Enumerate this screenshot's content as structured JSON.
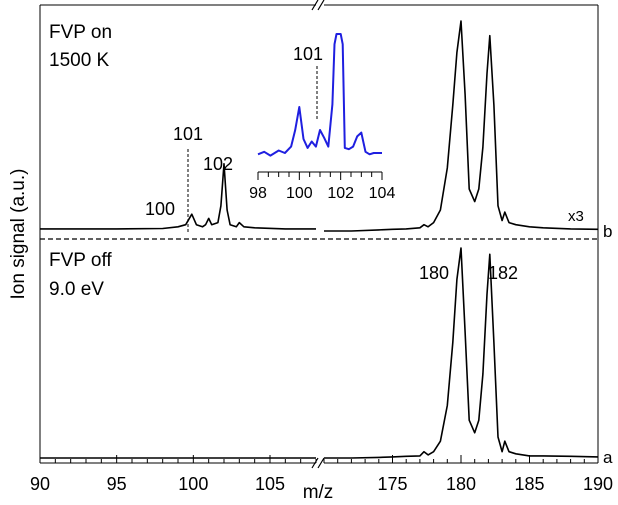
{
  "chart_data": [
    {
      "type": "line",
      "ylabel": "Ion signal (a.u.)",
      "xlabel": "m/z",
      "x_tick_labels": [
        "90",
        "95",
        "100",
        "105",
        "175",
        "180",
        "185",
        "190"
      ],
      "x_segments": [
        {
          "xlim": [
            90,
            108
          ],
          "major_ticks": [
            90,
            95,
            100,
            105
          ]
        },
        {
          "xlim": [
            170,
            190
          ],
          "major_ticks": [
            175,
            180,
            185,
            190
          ]
        }
      ],
      "axis_break": "//",
      "panels": {
        "top": {
          "label_lines": [
            "FVP on",
            "1500 K"
          ],
          "trace_letter": "b",
          "scale_note": "x3",
          "peak_labels": [
            "100",
            "101",
            "102"
          ],
          "dashed_marker_label": "101",
          "series": [
            {
              "segment": 0,
              "x": [
                90,
                95,
                98,
                99,
                99.5,
                99.9,
                100.2,
                100.6,
                100.8,
                101,
                101.2,
                101.6,
                101.8,
                102.0,
                102.2,
                102.4,
                102.8,
                103.0,
                103.3,
                104,
                106,
                108
              ],
              "y": [
                0.01,
                0.01,
                0.012,
                0.02,
                0.03,
                0.08,
                0.03,
                0.02,
                0.03,
                0.06,
                0.03,
                0.04,
                0.12,
                0.32,
                0.1,
                0.03,
                0.02,
                0.04,
                0.02,
                0.015,
                0.01,
                0.01
              ]
            },
            {
              "segment": 1,
              "x": [
                170,
                172,
                174,
                175,
                176,
                177,
                177.3,
                177.6,
                178,
                178.5,
                179,
                179.4,
                179.7,
                180.0,
                180.3,
                180.6,
                181.0,
                181.3,
                181.6,
                181.9,
                182.1,
                182.4,
                182.7,
                183.0,
                183.2,
                183.5,
                184,
                185,
                186,
                188,
                190
              ],
              "y": [
                0.0,
                0.0,
                0.005,
                0.008,
                0.01,
                0.015,
                0.03,
                0.02,
                0.04,
                0.1,
                0.3,
                0.6,
                0.85,
                1.0,
                0.65,
                0.2,
                0.14,
                0.2,
                0.4,
                0.75,
                0.93,
                0.6,
                0.12,
                0.05,
                0.09,
                0.04,
                0.03,
                0.02,
                0.015,
                0.01,
                0.008
              ]
            }
          ]
        },
        "bottom": {
          "label_lines": [
            "FVP off",
            "9.0 eV"
          ],
          "trace_letter": "a",
          "peak_labels": [
            "180",
            "182"
          ],
          "series": [
            {
              "segment": 0,
              "x": [
                90,
                95,
                100,
                105,
                108
              ],
              "y": [
                0.0,
                0.0,
                0.0,
                0.0,
                0.0
              ]
            },
            {
              "segment": 1,
              "x": [
                170,
                172,
                174,
                175,
                176,
                177,
                177.3,
                177.6,
                178,
                178.5,
                179,
                179.4,
                179.7,
                180.0,
                180.3,
                180.6,
                181.0,
                181.3,
                181.6,
                181.9,
                182.1,
                182.4,
                182.7,
                183.0,
                183.2,
                183.5,
                184,
                185,
                186,
                188,
                190
              ],
              "y": [
                0.0,
                0.0,
                0.003,
                0.005,
                0.008,
                0.01,
                0.03,
                0.015,
                0.03,
                0.08,
                0.25,
                0.55,
                0.85,
                1.0,
                0.6,
                0.18,
                0.12,
                0.18,
                0.4,
                0.78,
                0.97,
                0.55,
                0.1,
                0.03,
                0.08,
                0.03,
                0.02,
                0.01,
                0.01,
                0.008,
                0.005
              ]
            }
          ]
        }
      }
    },
    {
      "type": "line",
      "panel": "inset",
      "xlim": [
        98,
        104
      ],
      "x_tick_labels": [
        "98",
        "100",
        "102",
        "104"
      ],
      "dashed_marker_label": "101",
      "series_color": "#1f1fe0",
      "series": [
        {
          "x": [
            98.0,
            98.3,
            98.6,
            99.0,
            99.3,
            99.6,
            99.8,
            100.0,
            100.2,
            100.4,
            100.6,
            100.8,
            101.0,
            101.2,
            101.4,
            101.6,
            101.7,
            101.8,
            102.0,
            102.1,
            102.2,
            102.4,
            102.6,
            102.8,
            103.0,
            103.2,
            103.4,
            103.6,
            104.0
          ],
          "y": [
            0.06,
            0.08,
            0.05,
            0.09,
            0.07,
            0.12,
            0.25,
            0.43,
            0.18,
            0.11,
            0.16,
            0.12,
            0.25,
            0.19,
            0.12,
            0.45,
            0.92,
            1.0,
            1.0,
            0.92,
            0.11,
            0.1,
            0.12,
            0.2,
            0.23,
            0.08,
            0.06,
            0.07,
            0.07
          ]
        }
      ]
    }
  ]
}
